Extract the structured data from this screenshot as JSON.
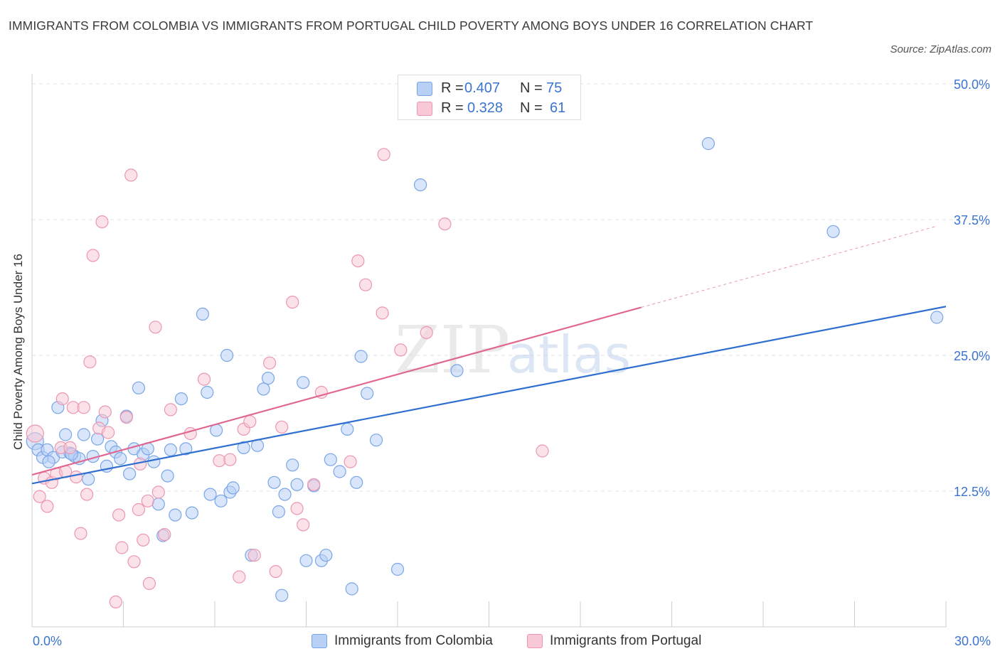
{
  "title": "IMMIGRANTS FROM COLOMBIA VS IMMIGRANTS FROM PORTUGAL CHILD POVERTY AMONG BOYS UNDER 16 CORRELATION CHART",
  "source": "Source: ZipAtlas.com",
  "colors": {
    "colombia_fill": "#b8d0f5",
    "colombia_stroke": "#7aa6e6",
    "colombia_line": "#2f6fd0",
    "portugal_fill": "#f8c8d6",
    "portugal_stroke": "#ec97b2",
    "portugal_line": "#e06890",
    "axis_text": "#3a74d0",
    "grid": "#e3e3e3"
  },
  "stats": {
    "r_label": "R =",
    "n_label": "N =",
    "colombia": {
      "r": "0.407",
      "n": "75"
    },
    "portugal": {
      "r": "0.328",
      "n": "61"
    }
  },
  "watermark": {
    "zip": "ZIP",
    "atlas": "atlas"
  },
  "chart_data": {
    "type": "scatter",
    "title": "IMMIGRANTS FROM COLOMBIA VS IMMIGRANTS FROM PORTUGAL CHILD POVERTY AMONG BOYS UNDER 16 CORRELATION CHART",
    "xlabel": "",
    "ylabel": "Child Poverty Among Boys Under 16",
    "xlim": [
      0,
      30
    ],
    "ylim": [
      0,
      50
    ],
    "x_tick_labels": [
      "0.0%",
      "30.0%"
    ],
    "y_ticks": [
      12.5,
      25,
      37.5,
      50
    ],
    "y_tick_labels": [
      "12.5%",
      "25.0%",
      "37.5%",
      "50.0%"
    ],
    "grid": true,
    "legend_position": "bottom-center",
    "series": [
      {
        "name": "Immigrants from Colombia",
        "trend": {
          "x0": 0,
          "y0": 13.2,
          "x1": 30,
          "y1": 29.5,
          "dashed_from": null
        },
        "points": [
          [
            0.1,
            17.1
          ],
          [
            0.2,
            16.3
          ],
          [
            0.35,
            15.6
          ],
          [
            0.5,
            16.3
          ],
          [
            0.7,
            15.6
          ],
          [
            0.85,
            20.2
          ],
          [
            1.0,
            16.1
          ],
          [
            1.1,
            17.7
          ],
          [
            1.25,
            16.0
          ],
          [
            1.4,
            15.7
          ],
          [
            1.55,
            15.5
          ],
          [
            1.7,
            17.7
          ],
          [
            1.85,
            13.6
          ],
          [
            2.0,
            15.7
          ],
          [
            2.15,
            17.3
          ],
          [
            2.3,
            19.0
          ],
          [
            2.45,
            14.8
          ],
          [
            2.6,
            16.6
          ],
          [
            2.75,
            16.1
          ],
          [
            2.9,
            15.5
          ],
          [
            3.1,
            19.4
          ],
          [
            3.2,
            14.1
          ],
          [
            3.35,
            16.4
          ],
          [
            3.5,
            22.0
          ],
          [
            3.65,
            15.9
          ],
          [
            3.8,
            16.4
          ],
          [
            4.0,
            15.2
          ],
          [
            4.15,
            11.3
          ],
          [
            4.3,
            8.4
          ],
          [
            4.45,
            13.9
          ],
          [
            4.55,
            16.3
          ],
          [
            4.7,
            10.3
          ],
          [
            4.9,
            21.0
          ],
          [
            5.05,
            16.4
          ],
          [
            5.25,
            10.5
          ],
          [
            5.6,
            28.8
          ],
          [
            5.75,
            21.6
          ],
          [
            5.85,
            12.2
          ],
          [
            6.05,
            18.1
          ],
          [
            6.2,
            11.6
          ],
          [
            6.4,
            25.0
          ],
          [
            6.5,
            12.4
          ],
          [
            6.6,
            12.8
          ],
          [
            6.95,
            16.5
          ],
          [
            7.2,
            6.6
          ],
          [
            7.4,
            16.7
          ],
          [
            7.6,
            21.9
          ],
          [
            7.75,
            22.9
          ],
          [
            7.95,
            13.3
          ],
          [
            8.1,
            10.6
          ],
          [
            8.2,
            2.9
          ],
          [
            8.3,
            12.2
          ],
          [
            8.55,
            14.9
          ],
          [
            8.7,
            13.1
          ],
          [
            8.9,
            22.5
          ],
          [
            9.0,
            6.1
          ],
          [
            9.25,
            13.0
          ],
          [
            9.5,
            6.1
          ],
          [
            9.65,
            6.6
          ],
          [
            9.8,
            15.4
          ],
          [
            10.1,
            14.3
          ],
          [
            10.35,
            18.2
          ],
          [
            10.5,
            3.5
          ],
          [
            10.65,
            13.3
          ],
          [
            10.8,
            24.9
          ],
          [
            11.0,
            21.5
          ],
          [
            11.3,
            17.2
          ],
          [
            12.0,
            5.3
          ],
          [
            12.75,
            40.7
          ],
          [
            13.95,
            23.6
          ],
          [
            22.2,
            44.5
          ],
          [
            26.3,
            36.4
          ],
          [
            29.7,
            28.5
          ],
          [
            0.55,
            15.2
          ],
          [
            1.3,
            15.9
          ]
        ]
      },
      {
        "name": "Immigrants from Portugal",
        "trend": {
          "x0": 0,
          "y0": 14.0,
          "x1": 29.7,
          "y1": 36.9,
          "dashed_from": 20.0
        },
        "points": [
          [
            0.1,
            17.8
          ],
          [
            0.25,
            12.0
          ],
          [
            0.4,
            13.7
          ],
          [
            0.5,
            11.1
          ],
          [
            0.65,
            13.3
          ],
          [
            0.8,
            14.1
          ],
          [
            0.95,
            16.5
          ],
          [
            1.0,
            21.0
          ],
          [
            1.1,
            14.3
          ],
          [
            1.25,
            16.5
          ],
          [
            1.35,
            20.2
          ],
          [
            1.45,
            13.8
          ],
          [
            1.6,
            8.6
          ],
          [
            1.7,
            20.2
          ],
          [
            1.8,
            12.2
          ],
          [
            1.9,
            24.4
          ],
          [
            2.0,
            34.2
          ],
          [
            2.2,
            18.3
          ],
          [
            2.3,
            37.3
          ],
          [
            2.4,
            19.8
          ],
          [
            2.5,
            17.9
          ],
          [
            2.75,
            2.3
          ],
          [
            2.85,
            10.3
          ],
          [
            2.95,
            7.3
          ],
          [
            3.1,
            19.3
          ],
          [
            3.25,
            41.6
          ],
          [
            3.35,
            6.0
          ],
          [
            3.5,
            10.8
          ],
          [
            3.55,
            15.0
          ],
          [
            3.65,
            8.0
          ],
          [
            3.8,
            11.6
          ],
          [
            3.85,
            4.0
          ],
          [
            4.05,
            27.6
          ],
          [
            4.15,
            12.4
          ],
          [
            4.35,
            8.5
          ],
          [
            4.55,
            20.0
          ],
          [
            5.2,
            17.8
          ],
          [
            5.65,
            22.8
          ],
          [
            6.15,
            15.3
          ],
          [
            6.5,
            15.4
          ],
          [
            6.8,
            4.6
          ],
          [
            6.95,
            18.2
          ],
          [
            7.15,
            18.9
          ],
          [
            7.3,
            6.6
          ],
          [
            7.8,
            24.3
          ],
          [
            8.0,
            5.1
          ],
          [
            8.2,
            18.4
          ],
          [
            8.55,
            29.9
          ],
          [
            8.7,
            10.9
          ],
          [
            8.9,
            9.4
          ],
          [
            9.25,
            13.1
          ],
          [
            9.5,
            21.6
          ],
          [
            10.45,
            15.2
          ],
          [
            10.7,
            33.7
          ],
          [
            10.95,
            31.5
          ],
          [
            11.5,
            28.9
          ],
          [
            11.55,
            43.5
          ],
          [
            12.1,
            25.5
          ],
          [
            12.95,
            27.1
          ],
          [
            13.55,
            37.1
          ],
          [
            16.75,
            16.2
          ]
        ]
      }
    ]
  },
  "legend": {
    "colombia": "Immigrants from Colombia",
    "portugal": "Immigrants from Portugal"
  }
}
